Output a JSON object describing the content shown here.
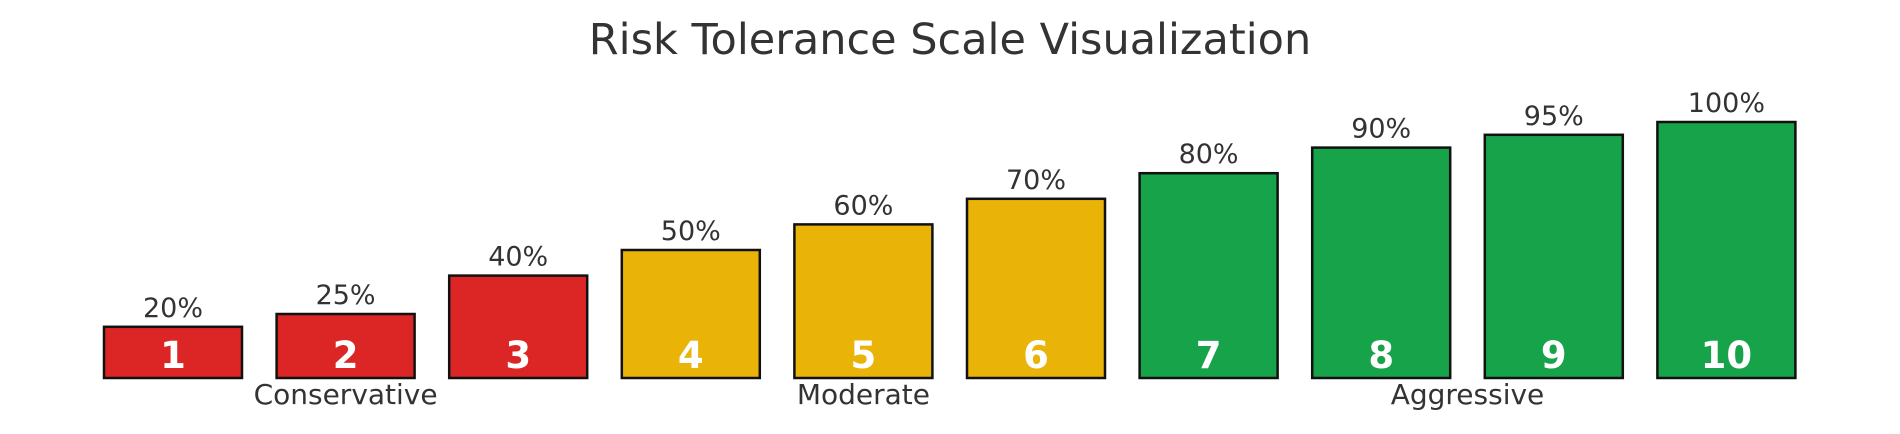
{
  "chart_data": {
    "type": "bar",
    "title": "Risk Tolerance Scale Visualization",
    "categories": [
      "1",
      "2",
      "3",
      "4",
      "5",
      "6",
      "7",
      "8",
      "9",
      "10"
    ],
    "values": [
      20,
      25,
      40,
      50,
      60,
      70,
      80,
      90,
      95,
      100
    ],
    "value_labels": [
      "20%",
      "25%",
      "40%",
      "50%",
      "60%",
      "70%",
      "80%",
      "90%",
      "95%",
      "100%"
    ],
    "ylim": [
      0,
      100
    ],
    "grid": false,
    "axes_visible": false,
    "groups": [
      {
        "label": "Conservative",
        "levels": [
          1,
          2,
          3
        ],
        "color": "#dc2626"
      },
      {
        "label": "Moderate",
        "levels": [
          4,
          5,
          6
        ],
        "color": "#eab308"
      },
      {
        "label": "Aggressive",
        "levels": [
          7,
          8,
          9,
          10
        ],
        "color": "#16a34a"
      }
    ]
  }
}
